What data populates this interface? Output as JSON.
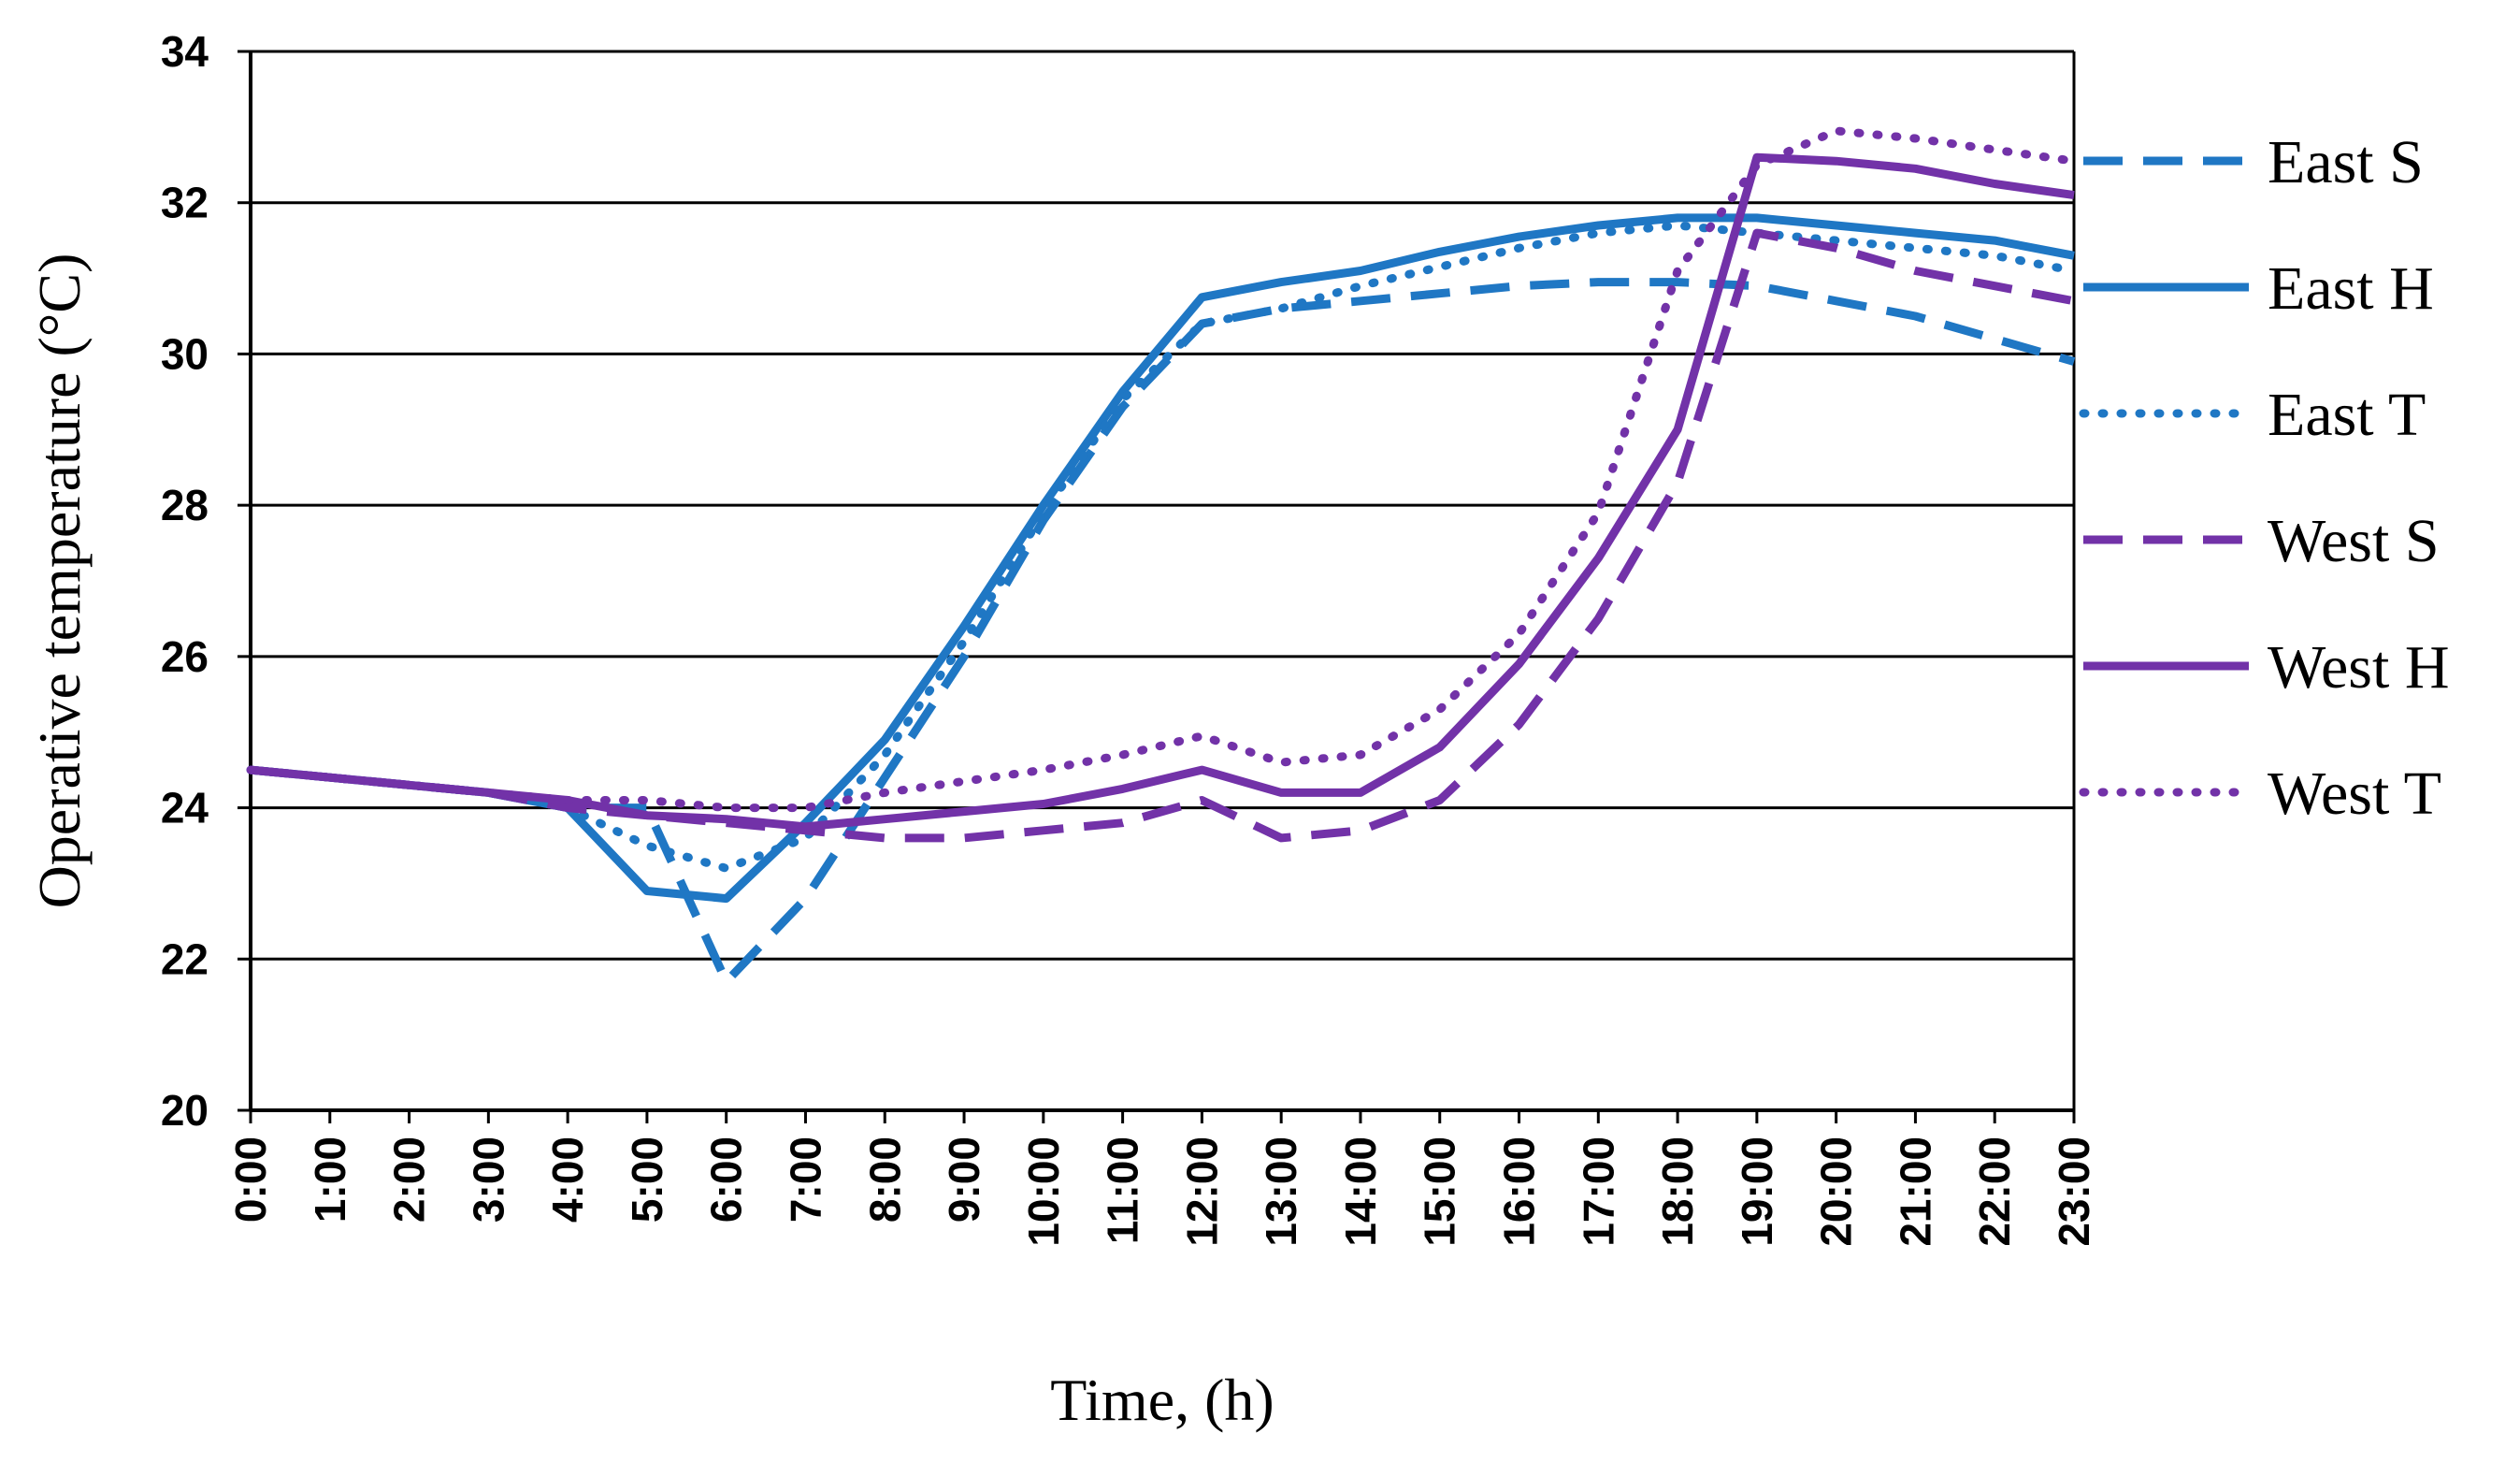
{
  "chart_data": {
    "type": "line",
    "title": "",
    "xlabel": "Time, (h)",
    "ylabel": "Operative temperature (°C)",
    "ylim": [
      20,
      34
    ],
    "yticks": [
      20,
      22,
      24,
      26,
      28,
      30,
      32,
      34
    ],
    "grid": "horizontal",
    "legend_position": "right",
    "categories": [
      "0:00",
      "1:00",
      "2:00",
      "3:00",
      "4:00",
      "5:00",
      "6:00",
      "7:00",
      "8:00",
      "9:00",
      "10:00",
      "11:00",
      "12:00",
      "13:00",
      "14:00",
      "15:00",
      "16:00",
      "17:00",
      "18:00",
      "19:00",
      "20:00",
      "21:00",
      "22:00",
      "23:00"
    ],
    "series": [
      {
        "name": "East S",
        "color": "#1f77c4",
        "dash": "dashed",
        "values": [
          24.5,
          24.4,
          24.3,
          24.2,
          24.0,
          24.0,
          21.7,
          22.8,
          24.4,
          26.0,
          27.8,
          29.3,
          30.4,
          30.6,
          30.7,
          30.8,
          30.9,
          30.95,
          30.95,
          30.9,
          30.7,
          30.5,
          30.2,
          29.9
        ]
      },
      {
        "name": "East H",
        "color": "#1f77c4",
        "dash": "solid",
        "values": [
          24.5,
          24.4,
          24.3,
          24.2,
          24.0,
          22.9,
          22.8,
          23.8,
          24.9,
          26.4,
          28.0,
          29.5,
          30.75,
          30.95,
          31.1,
          31.35,
          31.55,
          31.7,
          31.8,
          31.8,
          31.7,
          31.6,
          31.5,
          31.3
        ]
      },
      {
        "name": "East T",
        "color": "#1f77c4",
        "dash": "dotted",
        "values": [
          24.5,
          24.4,
          24.3,
          24.2,
          24.0,
          23.5,
          23.2,
          23.6,
          24.7,
          26.2,
          27.9,
          29.4,
          30.4,
          30.6,
          30.9,
          31.15,
          31.4,
          31.6,
          31.7,
          31.6,
          31.5,
          31.4,
          31.3,
          31.1
        ]
      },
      {
        "name": "West S",
        "color": "#7232a8",
        "dash": "dashed",
        "values": [
          24.5,
          24.4,
          24.3,
          24.2,
          24.0,
          23.9,
          23.8,
          23.7,
          23.6,
          23.6,
          23.7,
          23.8,
          24.1,
          23.6,
          23.7,
          24.1,
          25.1,
          26.5,
          28.3,
          31.6,
          31.4,
          31.1,
          30.9,
          30.7
        ]
      },
      {
        "name": "West H",
        "color": "#7232a8",
        "dash": "solid",
        "values": [
          24.5,
          24.4,
          24.3,
          24.2,
          24.1,
          23.9,
          23.85,
          23.75,
          23.85,
          23.95,
          24.05,
          24.25,
          24.5,
          24.2,
          24.2,
          24.8,
          25.9,
          27.3,
          29.0,
          32.6,
          32.55,
          32.45,
          32.25,
          32.1
        ]
      },
      {
        "name": "West T",
        "color": "#7232a8",
        "dash": "dotted",
        "values": [
          24.5,
          24.4,
          24.3,
          24.2,
          24.1,
          24.1,
          24.0,
          24.0,
          24.2,
          24.35,
          24.5,
          24.7,
          24.95,
          24.6,
          24.7,
          25.3,
          26.3,
          27.9,
          31.1,
          32.5,
          32.95,
          32.85,
          32.7,
          32.55
        ]
      }
    ]
  }
}
